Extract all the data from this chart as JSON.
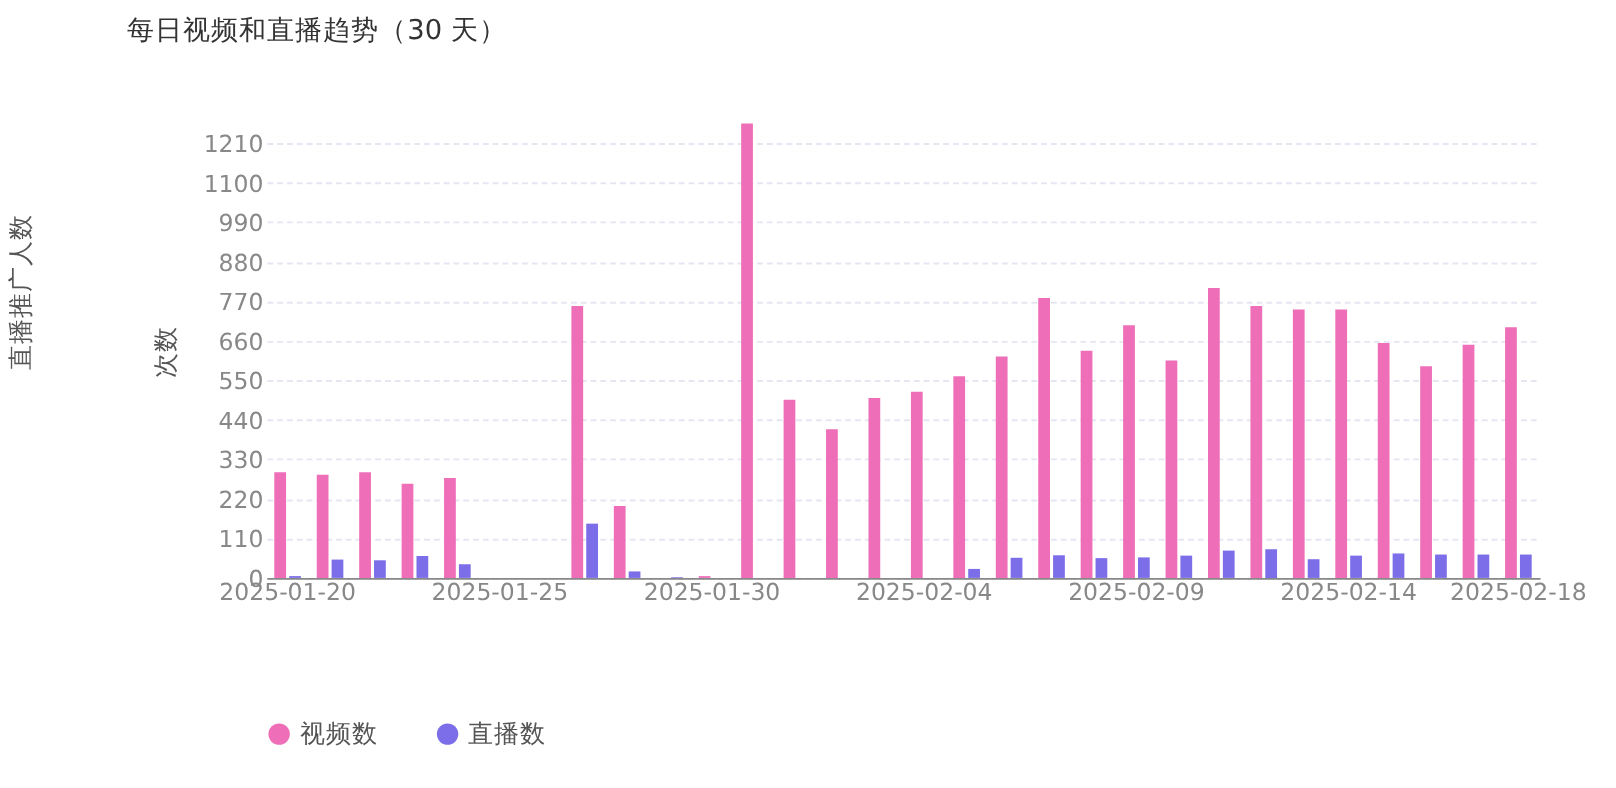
{
  "chart_data": {
    "type": "bar",
    "title": "每日视频和直播趋势（30 天）",
    "ylabel": "次数",
    "annotations": [
      "直播推广人数"
    ],
    "categories": [
      "2025-01-20",
      null,
      null,
      null,
      null,
      "2025-01-25",
      null,
      null,
      null,
      null,
      "2025-01-30",
      null,
      null,
      null,
      null,
      "2025-02-04",
      null,
      null,
      null,
      null,
      "2025-02-09",
      null,
      null,
      null,
      null,
      "2025-02-14",
      null,
      null,
      null,
      "2025-02-18"
    ],
    "series": [
      {
        "name": "视频数",
        "color": "#ee6eb8",
        "values": [
          294,
          287,
          294,
          262,
          278,
          0,
          0,
          757,
          200,
          0,
          5,
          1265,
          496,
          414,
          501,
          518,
          561,
          616,
          779,
          632,
          703,
          605,
          807,
          757,
          747,
          747,
          654,
          589,
          649,
          698
        ]
      },
      {
        "name": "直播数",
        "color": "#7b6ee8",
        "values": [
          5,
          51,
          49,
          61,
          38,
          0,
          0,
          151,
          18,
          2,
          0,
          0,
          0,
          0,
          0,
          0,
          25,
          56,
          63,
          55,
          57,
          62,
          76,
          80,
          52,
          62,
          68,
          65,
          65,
          65
        ]
      }
    ],
    "ylim": [
      0,
      1265
    ],
    "yticks": [
      0,
      110,
      220,
      330,
      440,
      550,
      660,
      770,
      880,
      990,
      1100,
      1210
    ],
    "grid": "y",
    "legend": "bottom"
  }
}
